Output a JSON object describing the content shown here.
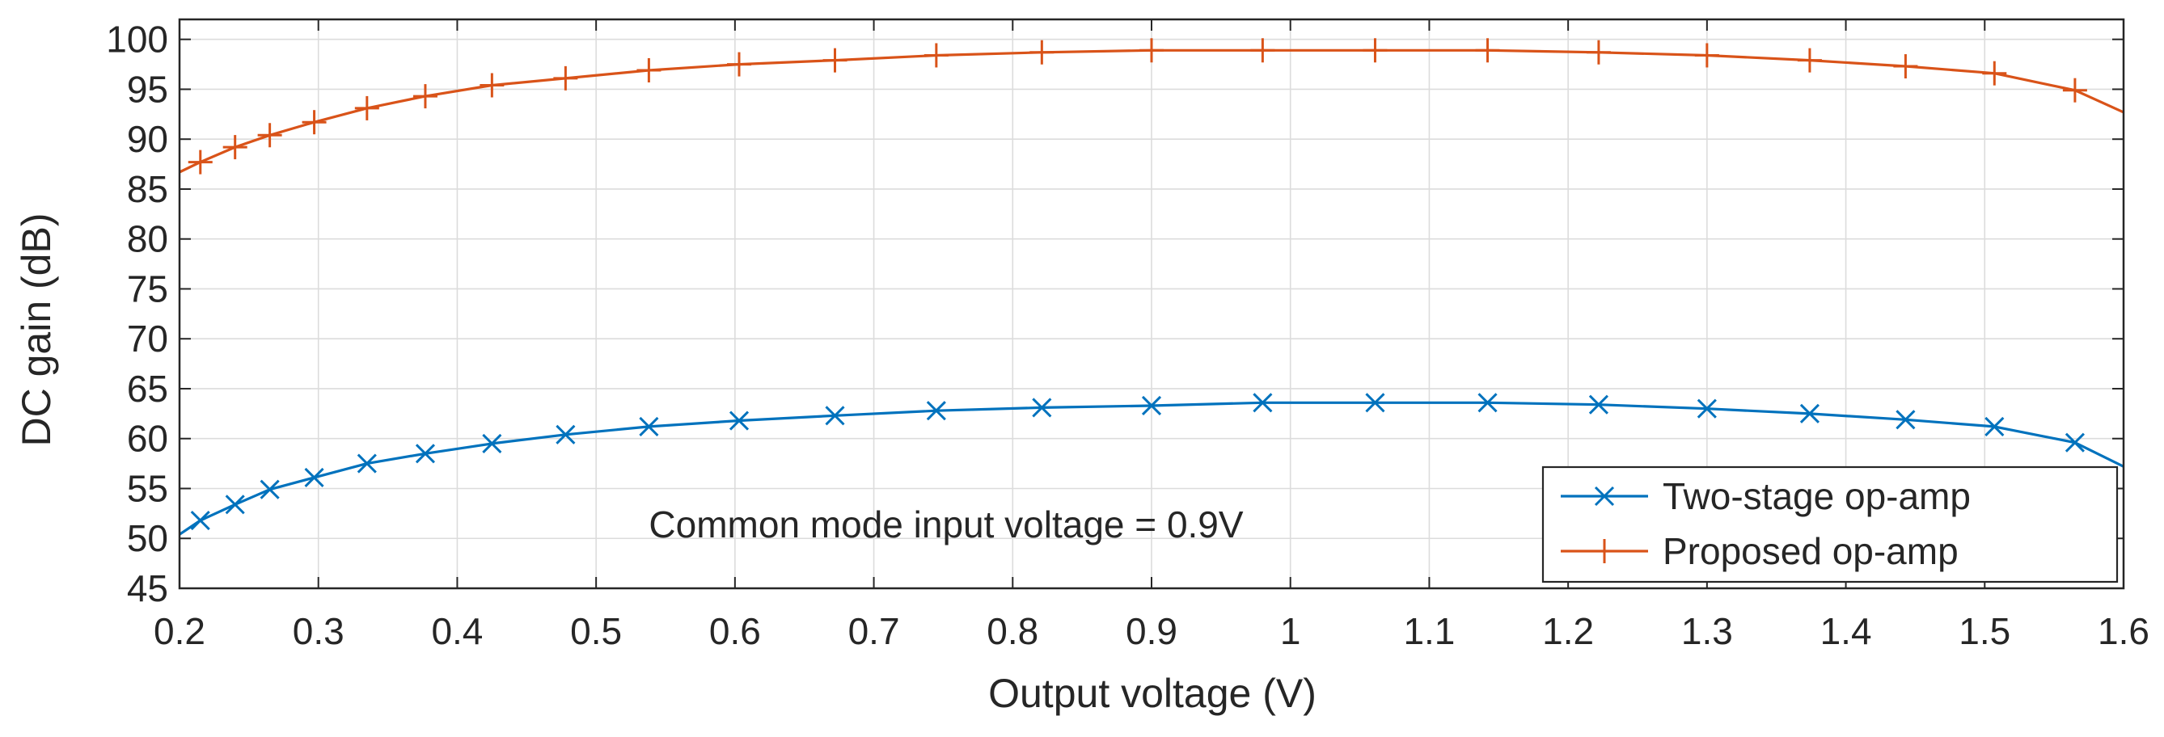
{
  "chart_data": {
    "type": "line",
    "title": "",
    "xlabel": "Output voltage (V)",
    "ylabel": "DC gain (dB)",
    "xlim": [
      0.2,
      1.6
    ],
    "ylim": [
      45,
      102
    ],
    "x_ticks": [
      0.2,
      0.3,
      0.4,
      0.5,
      0.6,
      0.7,
      0.8,
      0.9,
      1,
      1.1,
      1.2,
      1.3,
      1.4,
      1.5,
      1.6
    ],
    "x_tick_labels": [
      "0.2",
      "0.3",
      "0.4",
      "0.5",
      "0.6",
      "0.7",
      "0.8",
      "0.9",
      "1",
      "1.1",
      "1.2",
      "1.3",
      "1.4",
      "1.5",
      "1.6"
    ],
    "y_ticks": [
      45,
      50,
      55,
      60,
      65,
      70,
      75,
      80,
      85,
      90,
      95,
      100
    ],
    "y_tick_labels": [
      "45",
      "50",
      "55",
      "60",
      "65",
      "70",
      "75",
      "80",
      "85",
      "90",
      "95",
      "100"
    ],
    "grid": true,
    "legend_position": "bottom-right",
    "annotation": "Common mode input voltage = 0.9V",
    "series": [
      {
        "name": "Two-stage op-amp",
        "color": "#0072BD",
        "marker": "x",
        "x": [
          0.2,
          0.215,
          0.24,
          0.265,
          0.297,
          0.335,
          0.377,
          0.425,
          0.478,
          0.538,
          0.603,
          0.672,
          0.745,
          0.821,
          0.9,
          0.98,
          1.061,
          1.142,
          1.222,
          1.3,
          1.374,
          1.443,
          1.507,
          1.565,
          1.6
        ],
        "y": [
          50.4,
          51.8,
          53.4,
          54.9,
          56.1,
          57.5,
          58.5,
          59.5,
          60.4,
          61.2,
          61.8,
          62.3,
          62.8,
          63.1,
          63.3,
          63.6,
          63.6,
          63.6,
          63.4,
          63.0,
          62.5,
          61.9,
          61.2,
          59.6,
          57.2
        ],
        "markers_x": [
          0.215,
          0.24,
          0.265,
          0.297,
          0.335,
          0.377,
          0.425,
          0.478,
          0.538,
          0.603,
          0.672,
          0.745,
          0.821,
          0.9,
          0.98,
          1.061,
          1.142,
          1.222,
          1.3,
          1.374,
          1.443,
          1.507,
          1.565
        ],
        "markers_y": [
          51.8,
          53.4,
          54.9,
          56.1,
          57.5,
          58.5,
          59.5,
          60.4,
          61.2,
          61.8,
          62.3,
          62.8,
          63.1,
          63.3,
          63.6,
          63.6,
          63.6,
          63.4,
          63.0,
          62.5,
          61.9,
          61.2,
          59.6
        ]
      },
      {
        "name": "Proposed op-amp",
        "color": "#D95319",
        "marker": "+",
        "x": [
          0.2,
          0.215,
          0.24,
          0.265,
          0.297,
          0.335,
          0.377,
          0.425,
          0.478,
          0.538,
          0.603,
          0.672,
          0.745,
          0.821,
          0.9,
          0.98,
          1.061,
          1.142,
          1.222,
          1.3,
          1.374,
          1.443,
          1.507,
          1.565,
          1.6
        ],
        "y": [
          86.7,
          87.7,
          89.2,
          90.4,
          91.7,
          93.1,
          94.3,
          95.4,
          96.1,
          96.9,
          97.5,
          97.9,
          98.4,
          98.7,
          98.9,
          98.9,
          98.9,
          98.9,
          98.7,
          98.4,
          97.9,
          97.3,
          96.6,
          94.9,
          92.7
        ],
        "markers_x": [
          0.215,
          0.24,
          0.265,
          0.297,
          0.335,
          0.377,
          0.425,
          0.478,
          0.538,
          0.603,
          0.672,
          0.745,
          0.821,
          0.9,
          0.98,
          1.061,
          1.142,
          1.222,
          1.3,
          1.374,
          1.443,
          1.507,
          1.565
        ],
        "markers_y": [
          87.7,
          89.2,
          90.4,
          91.7,
          93.1,
          94.3,
          95.4,
          96.1,
          96.9,
          97.5,
          97.9,
          98.4,
          98.7,
          98.9,
          98.9,
          98.9,
          98.9,
          98.7,
          98.4,
          97.9,
          97.3,
          96.6,
          94.9
        ]
      }
    ]
  }
}
